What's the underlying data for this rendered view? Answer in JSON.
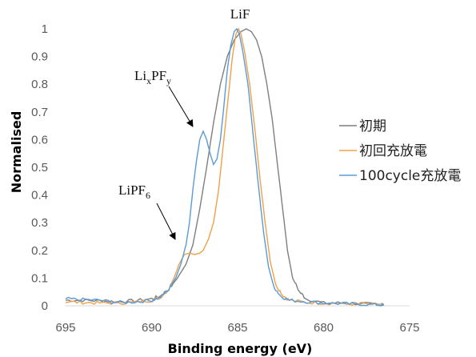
{
  "chart_data": {
    "type": "line",
    "xlabel": "Binding energy (eV)",
    "ylabel": "Normalised",
    "xlim": [
      695,
      675
    ],
    "ylim": [
      0,
      1
    ],
    "x_reversed": true,
    "xticks": [
      "695",
      "690",
      "685",
      "680",
      "675"
    ],
    "yticks": [
      "0",
      "0.1",
      "0.2",
      "0.3",
      "0.4",
      "0.5",
      "0.6",
      "0.7",
      "0.8",
      "0.9",
      "1"
    ],
    "grid": false,
    "legend_position": "right",
    "series": [
      {
        "name": "初期",
        "color": "#7f7f7f",
        "points": [
          [
            695,
            0.02
          ],
          [
            694,
            0.02
          ],
          [
            693,
            0.018
          ],
          [
            692,
            0.015
          ],
          [
            691,
            0.018
          ],
          [
            690,
            0.025
          ],
          [
            689.5,
            0.035
          ],
          [
            689,
            0.06
          ],
          [
            688.5,
            0.1
          ],
          [
            688,
            0.15
          ],
          [
            687.6,
            0.22
          ],
          [
            687.2,
            0.35
          ],
          [
            686.8,
            0.5
          ],
          [
            686.4,
            0.66
          ],
          [
            686,
            0.8
          ],
          [
            685.6,
            0.9
          ],
          [
            685.2,
            0.96
          ],
          [
            684.8,
            0.99
          ],
          [
            684.5,
            1.0
          ],
          [
            684.2,
            0.99
          ],
          [
            683.9,
            0.96
          ],
          [
            683.6,
            0.9
          ],
          [
            683.3,
            0.8
          ],
          [
            683,
            0.68
          ],
          [
            682.7,
            0.52
          ],
          [
            682.4,
            0.36
          ],
          [
            682.1,
            0.2
          ],
          [
            681.8,
            0.1
          ],
          [
            681.4,
            0.05
          ],
          [
            681,
            0.025
          ],
          [
            680,
            0.01
          ],
          [
            679,
            0.01
          ],
          [
            678,
            0.008
          ],
          [
            677,
            0.005
          ],
          [
            676.5,
            0.003
          ]
        ]
      },
      {
        "name": "初回充放電",
        "color": "#f0a04b",
        "points": [
          [
            695,
            0.015
          ],
          [
            694,
            0.012
          ],
          [
            693,
            0.01
          ],
          [
            692,
            0.01
          ],
          [
            691,
            0.012
          ],
          [
            690,
            0.02
          ],
          [
            689.5,
            0.03
          ],
          [
            689,
            0.06
          ],
          [
            688.7,
            0.1
          ],
          [
            688.4,
            0.15
          ],
          [
            688.1,
            0.185
          ],
          [
            687.8,
            0.19
          ],
          [
            687.5,
            0.185
          ],
          [
            687.2,
            0.19
          ],
          [
            687,
            0.2
          ],
          [
            686.7,
            0.24
          ],
          [
            686.4,
            0.3
          ],
          [
            686.1,
            0.42
          ],
          [
            685.8,
            0.6
          ],
          [
            685.5,
            0.78
          ],
          [
            685.3,
            0.9
          ],
          [
            685.1,
            0.98
          ],
          [
            684.95,
            1.0
          ],
          [
            684.8,
            0.98
          ],
          [
            684.6,
            0.92
          ],
          [
            684.3,
            0.8
          ],
          [
            684,
            0.64
          ],
          [
            683.7,
            0.46
          ],
          [
            683.4,
            0.3
          ],
          [
            683.1,
            0.16
          ],
          [
            682.8,
            0.08
          ],
          [
            682.4,
            0.04
          ],
          [
            682,
            0.02
          ],
          [
            681,
            0.012
          ],
          [
            680,
            0.01
          ],
          [
            679,
            0.008
          ],
          [
            678,
            0.006
          ],
          [
            677,
            0.004
          ],
          [
            676.5,
            0.003
          ]
        ]
      },
      {
        "name": "100cycle充放電",
        "color": "#5b9bd5",
        "points": [
          [
            695,
            0.025
          ],
          [
            694,
            0.022
          ],
          [
            693,
            0.02
          ],
          [
            692,
            0.012
          ],
          [
            691,
            0.014
          ],
          [
            690,
            0.02
          ],
          [
            689.5,
            0.03
          ],
          [
            689,
            0.06
          ],
          [
            688.6,
            0.1
          ],
          [
            688.3,
            0.15
          ],
          [
            688,
            0.22
          ],
          [
            687.8,
            0.3
          ],
          [
            687.6,
            0.42
          ],
          [
            687.4,
            0.52
          ],
          [
            687.2,
            0.6
          ],
          [
            687,
            0.63
          ],
          [
            686.8,
            0.6
          ],
          [
            686.6,
            0.55
          ],
          [
            686.4,
            0.51
          ],
          [
            686.2,
            0.53
          ],
          [
            686,
            0.6
          ],
          [
            685.8,
            0.72
          ],
          [
            685.6,
            0.85
          ],
          [
            685.4,
            0.94
          ],
          [
            685.2,
            0.99
          ],
          [
            685.05,
            1.0
          ],
          [
            684.9,
            0.98
          ],
          [
            684.7,
            0.92
          ],
          [
            684.4,
            0.8
          ],
          [
            684.1,
            0.62
          ],
          [
            683.8,
            0.44
          ],
          [
            683.5,
            0.27
          ],
          [
            683.2,
            0.14
          ],
          [
            682.9,
            0.07
          ],
          [
            682.5,
            0.035
          ],
          [
            682,
            0.02
          ],
          [
            681,
            0.015
          ],
          [
            680,
            0.01
          ],
          [
            679,
            0.008
          ],
          [
            678,
            0.006
          ],
          [
            677,
            0.004
          ],
          [
            676.5,
            0.003
          ]
        ]
      }
    ],
    "annotations": [
      {
        "text": "LiF",
        "x": 684.5,
        "y": 1.03
      },
      {
        "text_main": "Li",
        "sub1": "x",
        "mid": "PF",
        "sub2": "y",
        "arrow_to": [
          687.6,
          0.6
        ]
      },
      {
        "text_main": "LiPF",
        "sub1": "6",
        "arrow_to": [
          688.8,
          0.215
        ]
      }
    ]
  }
}
